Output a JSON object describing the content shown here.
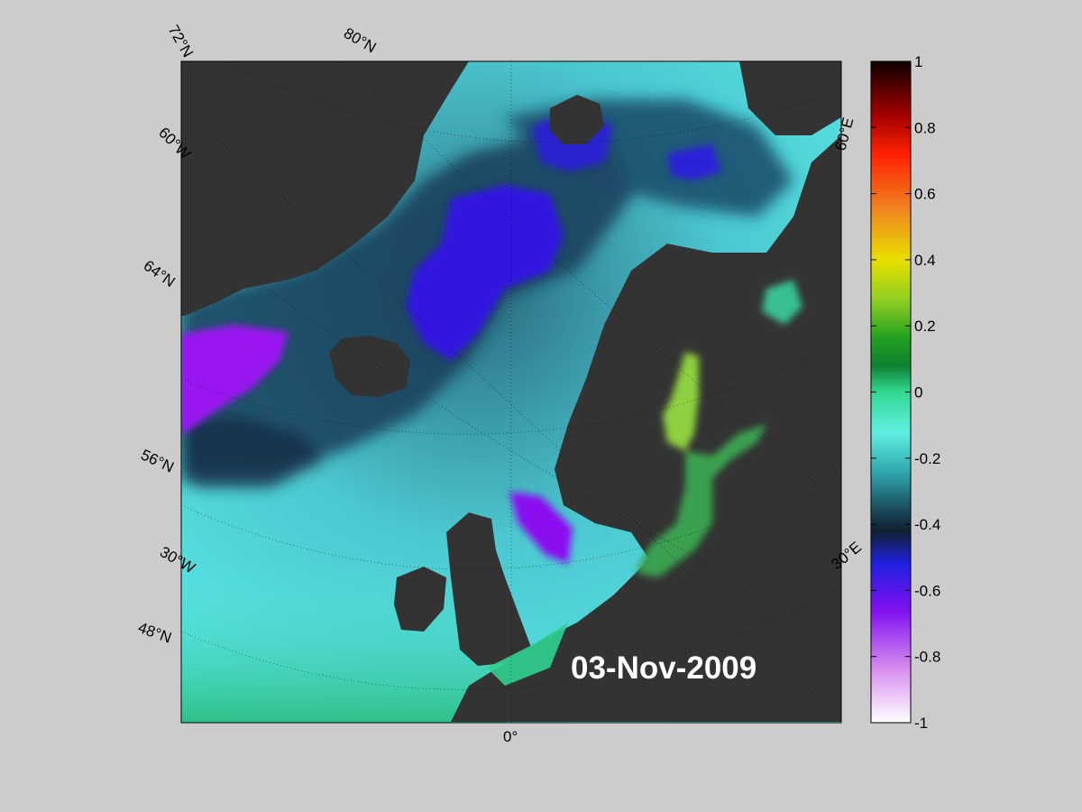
{
  "map": {
    "date_label": "03-Nov-2009",
    "colors": {
      "land": "#333333",
      "ocean_low": "#7a20e8",
      "ocean_mid": "#1a3850",
      "ocean_high": "#5ae8e6",
      "ocean_green": "#2ec08a",
      "baltic": "#3aa050",
      "bothnia": "#8ed040"
    },
    "geo_labels": {
      "lat_72": "72°N",
      "lat_60w": "60°W",
      "lat_80": "80°N",
      "lat_64": "64°N",
      "lat_56": "56°N",
      "lat_30w": "30°W",
      "lat_48": "48°N",
      "lon_0": "0°",
      "lon_60e": "60°E",
      "lon_30e": "30°E"
    }
  },
  "colorbar": {
    "range": [
      -1,
      1
    ],
    "tick_labels": [
      "1",
      "0.8",
      "0.6",
      "0.4",
      "0.2",
      "0",
      "-0.2",
      "-0.4",
      "-0.6",
      "-0.8",
      "-1"
    ]
  }
}
